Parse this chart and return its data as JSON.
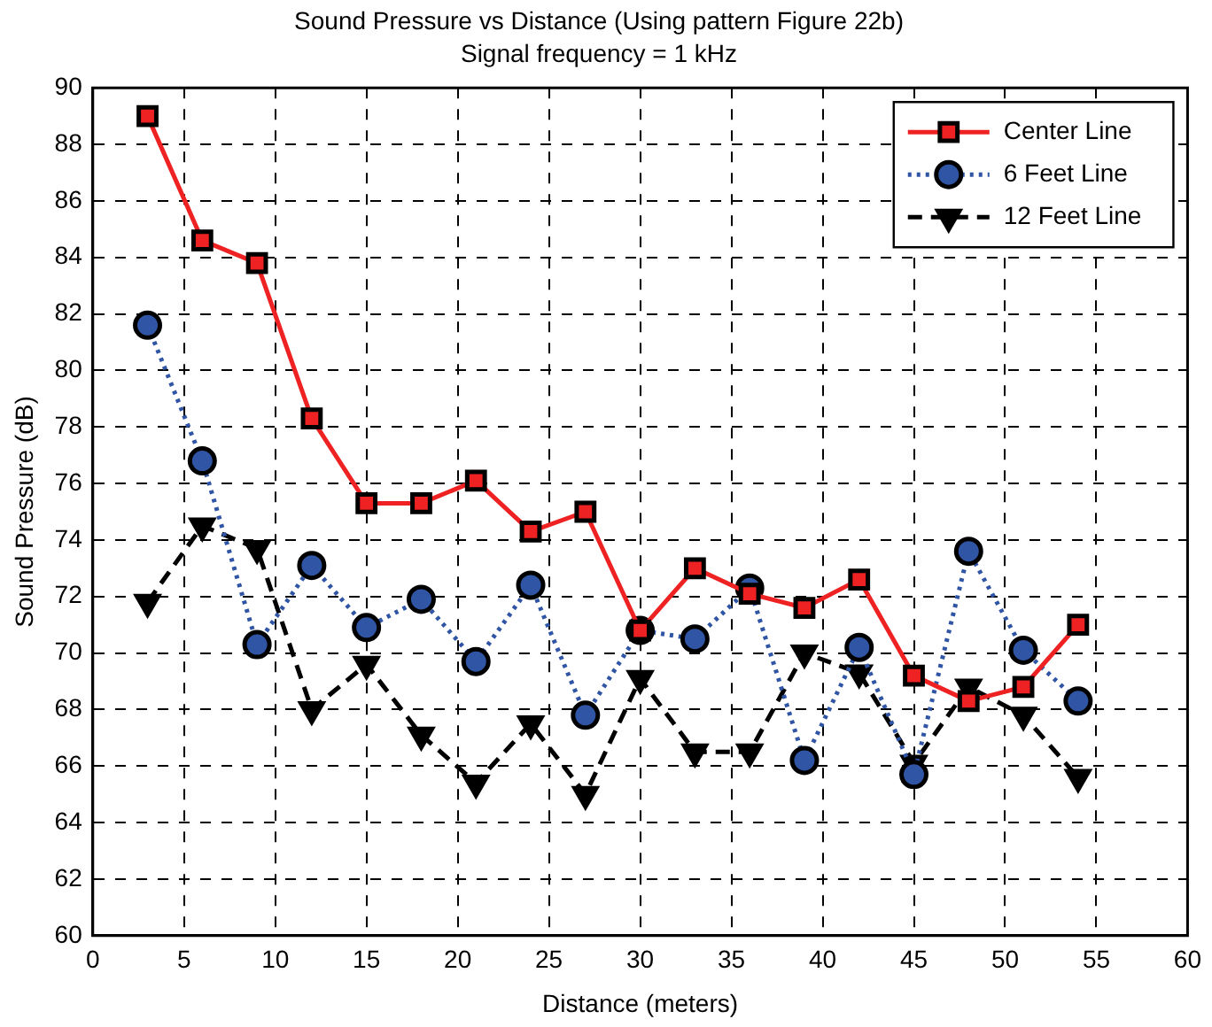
{
  "chart_data": {
    "type": "line",
    "title": "Sound Pressure vs Distance (Using pattern Figure 22b)",
    "subtitle": "Signal frequency = 1 kHz",
    "xlabel": "Distance (meters)",
    "ylabel": "Sound Pressure (dB)",
    "x": [
      3,
      6,
      9,
      12,
      15,
      18,
      21,
      24,
      27,
      30,
      33,
      36,
      39,
      42,
      45,
      48,
      51,
      54
    ],
    "xlim": [
      0,
      60
    ],
    "xticks": [
      0,
      5,
      10,
      15,
      20,
      25,
      30,
      35,
      40,
      45,
      50,
      55,
      60
    ],
    "ylim": [
      60,
      90
    ],
    "yticks": [
      60,
      62,
      64,
      66,
      68,
      70,
      72,
      74,
      76,
      78,
      80,
      82,
      84,
      86,
      88,
      90
    ],
    "grid": true,
    "legend": "top right",
    "series": [
      {
        "name": "Center Line",
        "color": "#ee2222",
        "marker": "square",
        "line_style": "solid",
        "values": [
          89.0,
          84.6,
          83.8,
          78.3,
          75.3,
          75.3,
          76.1,
          74.3,
          75.0,
          70.8,
          73.0,
          72.1,
          71.6,
          72.6,
          69.2,
          68.3,
          68.8,
          71.0
        ]
      },
      {
        "name": "6 Feet Line",
        "color": "#2f55a4",
        "marker": "circle",
        "line_style": "dotted",
        "values": [
          81.6,
          76.8,
          70.3,
          73.1,
          70.9,
          71.9,
          69.7,
          72.4,
          67.8,
          70.8,
          70.5,
          72.3,
          66.2,
          70.2,
          65.7,
          73.6,
          70.1,
          68.3
        ]
      },
      {
        "name": "12 Feet Line",
        "color": "#000000",
        "marker": "triangle",
        "line_style": "dashed",
        "values": [
          71.8,
          74.5,
          73.7,
          68.0,
          69.6,
          67.1,
          65.4,
          67.5,
          65.0,
          69.1,
          66.5,
          66.5,
          70.0,
          69.3,
          66.1,
          68.8,
          67.8,
          65.6
        ]
      }
    ]
  }
}
